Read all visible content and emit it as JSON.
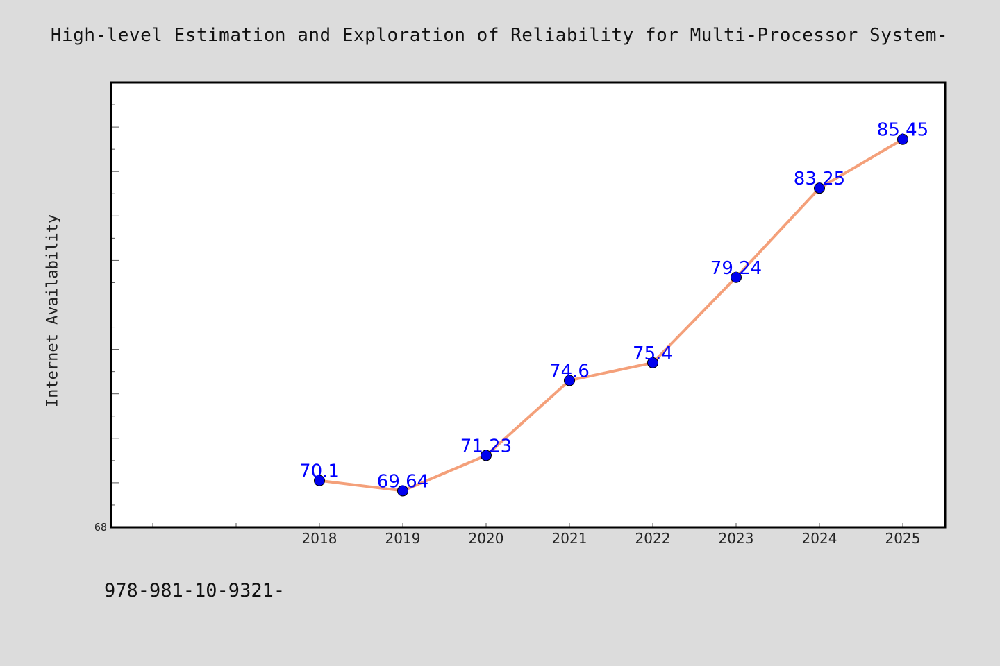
{
  "title": "High-level Estimation and Exploration of Reliability for Multi-Processor System-",
  "footer_text": "978-981-10-9321-",
  "colors": {
    "background": "#dcdcdc",
    "plot_background": "#ffffff",
    "line": "#f4a07a",
    "marker": "#0000ee",
    "data_label": "#0000ff"
  },
  "chart_data": {
    "type": "line",
    "title": "High-level Estimation and Exploration of Reliability for Multi-Processor System-",
    "xlabel": "",
    "ylabel": "Internet Availability",
    "categories": [
      "2018",
      "2019",
      "2020",
      "2021",
      "2022",
      "2023",
      "2024",
      "2025"
    ],
    "series": [
      {
        "values": [
          70.1,
          69.64,
          71.23,
          74.6,
          75.4,
          79.24,
          83.25,
          85.45
        ]
      }
    ],
    "data_labels": [
      "70.1",
      "69.64",
      "71.23",
      "74.6",
      "75.4",
      "79.24",
      "83.25",
      "85.45"
    ],
    "y_tick_labels": [
      "68"
    ],
    "ylim": [
      68,
      88
    ],
    "grid": false,
    "legend": "none"
  }
}
